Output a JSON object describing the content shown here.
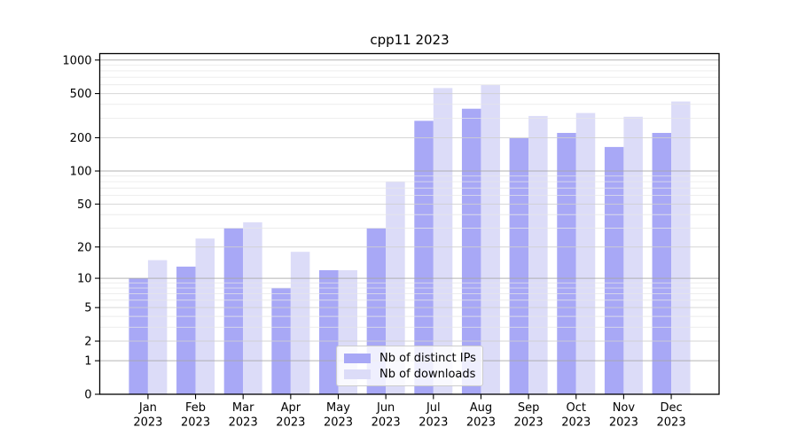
{
  "title": "cpp11 2023",
  "legend": {
    "items": [
      {
        "label": "Nb of distinct IPs",
        "color": "#a8a8f6"
      },
      {
        "label": "Nb of downloads",
        "color": "#dcdcf8"
      }
    ]
  },
  "chart_data": {
    "type": "bar",
    "title": "cpp11 2023",
    "categories": [
      "Jan",
      "Feb",
      "Mar",
      "Apr",
      "May",
      "Jun",
      "Jul",
      "Aug",
      "Sep",
      "Oct",
      "Nov",
      "Dec"
    ],
    "x_label_year": "2023",
    "series": [
      {
        "name": "Nb of distinct IPs",
        "color": "#a8a8f6",
        "values": [
          10,
          13,
          30,
          8,
          12,
          30,
          284,
          365,
          198,
          221,
          165,
          221
        ]
      },
      {
        "name": "Nb of downloads",
        "color": "#dcdcf8",
        "values": [
          15,
          24,
          34,
          18,
          12,
          80,
          560,
          597,
          314,
          334,
          309,
          424
        ]
      }
    ],
    "yscale": "log1p",
    "y_ticks": [
      0,
      1,
      2,
      5,
      10,
      20,
      50,
      100,
      200,
      500,
      1000
    ],
    "y_minor_grid": [
      3,
      4,
      6,
      7,
      8,
      9,
      30,
      40,
      60,
      70,
      80,
      90,
      300,
      400,
      600,
      700,
      800,
      900
    ],
    "ylim": [
      0,
      1130
    ],
    "xlabel": "",
    "ylabel": "",
    "grid": true,
    "legend_position": "lower center"
  },
  "colors": {
    "background": "#ffffff",
    "axis": "#000000",
    "grid_decade": "#a6a6a6",
    "grid_major": "#d0d0d0",
    "grid_minor": "#e7e7e7"
  }
}
